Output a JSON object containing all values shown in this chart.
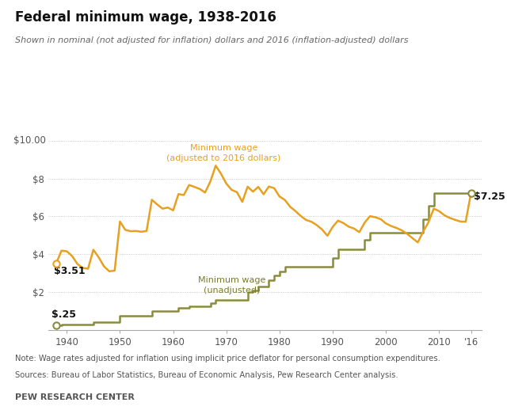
{
  "title": "Federal minimum wage, 1938-2016",
  "subtitle": "Shown in nominal (not adjusted for inflation) dollars and 2016 (inflation-adjusted) dollars",
  "note": "Note: Wage rates adjusted for inflation using implicit price deflator for personal consumption expenditures.",
  "sources": "Sources: Bureau of Labor Statistics, Bureau of Economic Analysis, Pew Research Center analysis.",
  "footer": "PEW RESEARCH CENTER",
  "background_color": "#ffffff",
  "orange_color": "#E8A020",
  "olive_color": "#8B8C3A",
  "grid_color": "#b0b0b0",
  "ylim": [
    0,
    10.5
  ],
  "xlabel_2016": "'16",
  "unadjusted_data": [
    [
      1938,
      0.25
    ],
    [
      1939,
      0.3
    ],
    [
      1940,
      0.3
    ],
    [
      1941,
      0.3
    ],
    [
      1942,
      0.3
    ],
    [
      1943,
      0.3
    ],
    [
      1944,
      0.3
    ],
    [
      1945,
      0.4
    ],
    [
      1946,
      0.4
    ],
    [
      1947,
      0.4
    ],
    [
      1948,
      0.4
    ],
    [
      1949,
      0.4
    ],
    [
      1950,
      0.75
    ],
    [
      1951,
      0.75
    ],
    [
      1952,
      0.75
    ],
    [
      1953,
      0.75
    ],
    [
      1954,
      0.75
    ],
    [
      1955,
      0.75
    ],
    [
      1956,
      1.0
    ],
    [
      1957,
      1.0
    ],
    [
      1958,
      1.0
    ],
    [
      1959,
      1.0
    ],
    [
      1960,
      1.0
    ],
    [
      1961,
      1.15
    ],
    [
      1962,
      1.15
    ],
    [
      1963,
      1.25
    ],
    [
      1964,
      1.25
    ],
    [
      1965,
      1.25
    ],
    [
      1966,
      1.25
    ],
    [
      1967,
      1.4
    ],
    [
      1968,
      1.6
    ],
    [
      1969,
      1.6
    ],
    [
      1970,
      1.6
    ],
    [
      1971,
      1.6
    ],
    [
      1972,
      1.6
    ],
    [
      1973,
      1.6
    ],
    [
      1974,
      2.0
    ],
    [
      1975,
      2.1
    ],
    [
      1976,
      2.3
    ],
    [
      1977,
      2.3
    ],
    [
      1978,
      2.65
    ],
    [
      1979,
      2.9
    ],
    [
      1980,
      3.1
    ],
    [
      1981,
      3.35
    ],
    [
      1982,
      3.35
    ],
    [
      1983,
      3.35
    ],
    [
      1984,
      3.35
    ],
    [
      1985,
      3.35
    ],
    [
      1986,
      3.35
    ],
    [
      1987,
      3.35
    ],
    [
      1988,
      3.35
    ],
    [
      1989,
      3.35
    ],
    [
      1990,
      3.8
    ],
    [
      1991,
      4.25
    ],
    [
      1992,
      4.25
    ],
    [
      1993,
      4.25
    ],
    [
      1994,
      4.25
    ],
    [
      1995,
      4.25
    ],
    [
      1996,
      4.75
    ],
    [
      1997,
      5.15
    ],
    [
      1998,
      5.15
    ],
    [
      1999,
      5.15
    ],
    [
      2000,
      5.15
    ],
    [
      2001,
      5.15
    ],
    [
      2002,
      5.15
    ],
    [
      2003,
      5.15
    ],
    [
      2004,
      5.15
    ],
    [
      2005,
      5.15
    ],
    [
      2006,
      5.15
    ],
    [
      2007,
      5.85
    ],
    [
      2008,
      6.55
    ],
    [
      2009,
      7.25
    ],
    [
      2010,
      7.25
    ],
    [
      2011,
      7.25
    ],
    [
      2012,
      7.25
    ],
    [
      2013,
      7.25
    ],
    [
      2014,
      7.25
    ],
    [
      2015,
      7.25
    ],
    [
      2016,
      7.25
    ]
  ],
  "adjusted_data": [
    [
      1938,
      3.51
    ],
    [
      1939,
      4.19
    ],
    [
      1940,
      4.16
    ],
    [
      1941,
      3.91
    ],
    [
      1942,
      3.49
    ],
    [
      1943,
      3.28
    ],
    [
      1944,
      3.24
    ],
    [
      1945,
      4.24
    ],
    [
      1946,
      3.84
    ],
    [
      1947,
      3.36
    ],
    [
      1948,
      3.1
    ],
    [
      1949,
      3.14
    ],
    [
      1950,
      5.73
    ],
    [
      1951,
      5.29
    ],
    [
      1952,
      5.22
    ],
    [
      1953,
      5.23
    ],
    [
      1954,
      5.19
    ],
    [
      1955,
      5.23
    ],
    [
      1956,
      6.88
    ],
    [
      1957,
      6.63
    ],
    [
      1958,
      6.41
    ],
    [
      1959,
      6.47
    ],
    [
      1960,
      6.32
    ],
    [
      1961,
      7.18
    ],
    [
      1962,
      7.13
    ],
    [
      1963,
      7.66
    ],
    [
      1964,
      7.56
    ],
    [
      1965,
      7.45
    ],
    [
      1966,
      7.26
    ],
    [
      1967,
      7.85
    ],
    [
      1968,
      8.68
    ],
    [
      1969,
      8.25
    ],
    [
      1970,
      7.73
    ],
    [
      1971,
      7.4
    ],
    [
      1972,
      7.28
    ],
    [
      1973,
      6.77
    ],
    [
      1974,
      7.57
    ],
    [
      1975,
      7.31
    ],
    [
      1976,
      7.56
    ],
    [
      1977,
      7.17
    ],
    [
      1978,
      7.58
    ],
    [
      1979,
      7.49
    ],
    [
      1980,
      7.05
    ],
    [
      1981,
      6.87
    ],
    [
      1982,
      6.51
    ],
    [
      1983,
      6.28
    ],
    [
      1984,
      6.02
    ],
    [
      1985,
      5.81
    ],
    [
      1986,
      5.72
    ],
    [
      1987,
      5.54
    ],
    [
      1988,
      5.31
    ],
    [
      1989,
      4.98
    ],
    [
      1990,
      5.45
    ],
    [
      1991,
      5.78
    ],
    [
      1992,
      5.65
    ],
    [
      1993,
      5.46
    ],
    [
      1994,
      5.36
    ],
    [
      1995,
      5.17
    ],
    [
      1996,
      5.67
    ],
    [
      1997,
      6.01
    ],
    [
      1998,
      5.96
    ],
    [
      1999,
      5.86
    ],
    [
      2000,
      5.63
    ],
    [
      2001,
      5.49
    ],
    [
      2002,
      5.39
    ],
    [
      2003,
      5.26
    ],
    [
      2004,
      5.08
    ],
    [
      2005,
      4.85
    ],
    [
      2006,
      4.63
    ],
    [
      2007,
      5.2
    ],
    [
      2008,
      5.69
    ],
    [
      2009,
      6.41
    ],
    [
      2010,
      6.28
    ],
    [
      2011,
      6.06
    ],
    [
      2012,
      5.92
    ],
    [
      2013,
      5.82
    ],
    [
      2014,
      5.73
    ],
    [
      2015,
      5.72
    ],
    [
      2016,
      7.25
    ]
  ]
}
